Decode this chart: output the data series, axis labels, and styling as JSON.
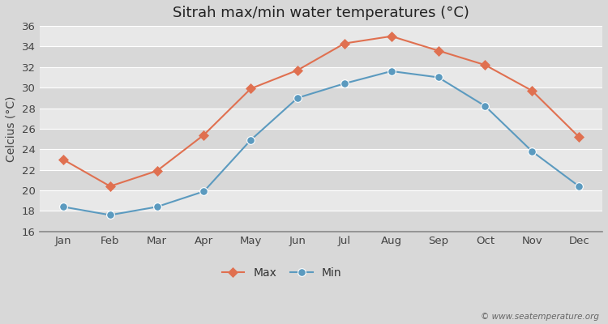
{
  "months": [
    "Jan",
    "Feb",
    "Mar",
    "Apr",
    "May",
    "Jun",
    "Jul",
    "Aug",
    "Sep",
    "Oct",
    "Nov",
    "Dec"
  ],
  "max_temps": [
    23.0,
    20.4,
    21.9,
    25.4,
    29.9,
    31.7,
    34.3,
    35.0,
    33.6,
    32.2,
    29.7,
    25.2
  ],
  "min_temps": [
    18.4,
    17.6,
    18.4,
    19.9,
    24.9,
    29.0,
    30.4,
    31.6,
    31.0,
    28.2,
    23.8,
    20.4
  ],
  "max_color": "#e07050",
  "min_color": "#5b9abf",
  "fig_bg_color": "#d8d8d8",
  "plot_bg_light": "#e8e8e8",
  "plot_bg_dark": "#d8d8d8",
  "grid_color": "#ffffff",
  "title": "Sitrah max/min water temperatures (°C)",
  "ylabel": "Celcius (°C)",
  "ylim": [
    16,
    36
  ],
  "yticks": [
    16,
    18,
    20,
    22,
    24,
    26,
    28,
    30,
    32,
    34,
    36
  ],
  "watermark": "© www.seatemperature.org",
  "legend_max": "Max",
  "legend_min": "Min",
  "title_fontsize": 13,
  "label_fontsize": 10,
  "tick_fontsize": 9.5,
  "marker_size_max": 6,
  "marker_size_min": 7
}
